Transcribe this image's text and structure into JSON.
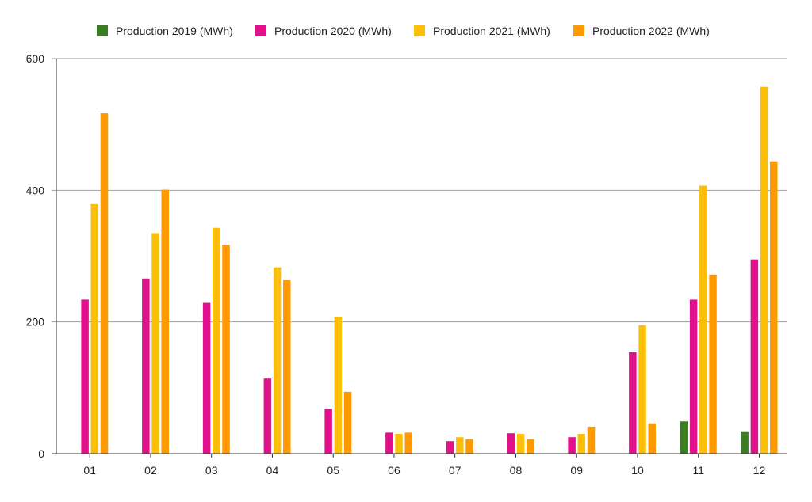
{
  "chart_data": {
    "type": "bar",
    "title": "",
    "xlabel": "",
    "ylabel": "",
    "ylim": [
      0,
      600
    ],
    "yticks": [
      "0",
      "200",
      "400",
      "600"
    ],
    "grid": true,
    "legend_position": "top-center",
    "categories": [
      "01",
      "02",
      "03",
      "04",
      "05",
      "06",
      "07",
      "08",
      "09",
      "10",
      "11",
      "12"
    ],
    "series": [
      {
        "name": "Production 2019 (MWh)",
        "color": "#3a7d22",
        "values": [
          0,
          0,
          0,
          0,
          0,
          0,
          0,
          0,
          0,
          0,
          49,
          34
        ]
      },
      {
        "name": "Production 2020 (MWh)",
        "color": "#e0118a",
        "values": [
          234,
          266,
          229,
          114,
          68,
          32,
          19,
          31,
          25,
          154,
          234,
          295
        ]
      },
      {
        "name": "Production 2021 (MWh)",
        "color": "#fbbf0a",
        "values": [
          379,
          335,
          343,
          283,
          208,
          30,
          25,
          30,
          30,
          195,
          407,
          557
        ]
      },
      {
        "name": "Production 2022 (MWh)",
        "color": "#ff9900",
        "values": [
          517,
          401,
          317,
          264,
          94,
          32,
          22,
          22,
          41,
          46,
          272,
          444
        ]
      }
    ]
  }
}
